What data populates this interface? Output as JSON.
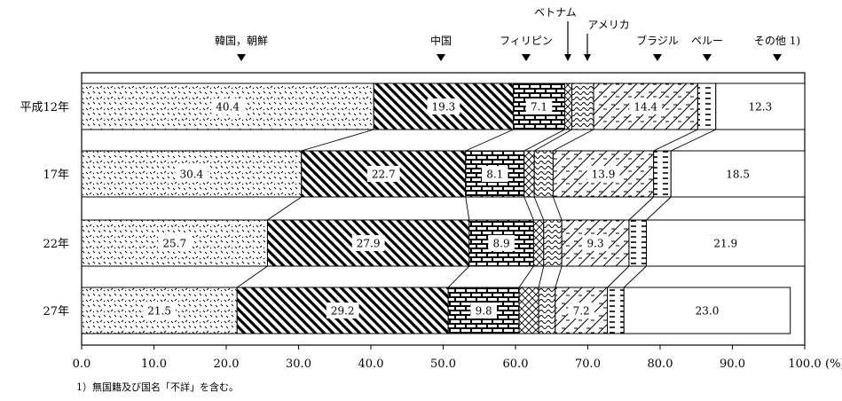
{
  "chart_data": {
    "type": "bar",
    "orientation": "horizontal",
    "stacked": true,
    "categories": [
      "平成12年",
      "17年",
      "22年",
      "27年"
    ],
    "series": [
      {
        "name": "韓国，朝鮮",
        "values": [
          40.4,
          30.4,
          25.7,
          21.5
        ],
        "pattern": "dots"
      },
      {
        "name": "中国",
        "values": [
          19.3,
          22.7,
          27.9,
          29.2
        ],
        "pattern": "diagonal-thick"
      },
      {
        "name": "フィリピン",
        "values": [
          7.1,
          8.1,
          8.9,
          9.8
        ],
        "pattern": "brick"
      },
      {
        "name": "ベトナム",
        "values": [
          1.0,
          1.4,
          1.4,
          2.7
        ],
        "pattern": "crosshatch"
      },
      {
        "name": "アメリカ",
        "values": [
          3.0,
          2.6,
          2.5,
          2.3
        ],
        "pattern": "wavy"
      },
      {
        "name": "ブラジル",
        "values": [
          14.4,
          13.9,
          9.3,
          7.2
        ],
        "pattern": "diagonal-light"
      },
      {
        "name": "ペルー",
        "values": [
          2.5,
          2.4,
          2.4,
          2.3
        ],
        "pattern": "dashes"
      },
      {
        "name": "その他 1)",
        "values": [
          12.3,
          18.5,
          21.9,
          23.0
        ],
        "pattern": "blank"
      }
    ],
    "labels": [
      [
        "40.4",
        "19.3",
        "7.1",
        "",
        "",
        "14.4",
        "",
        "12.3"
      ],
      [
        "30.4",
        "22.7",
        "8.1",
        "",
        "",
        "13.9",
        "",
        "18.5"
      ],
      [
        "25.7",
        "27.9",
        "8.9",
        "",
        "",
        "9.3",
        "",
        "21.9"
      ],
      [
        "21.5",
        "29.2",
        "9.8",
        "",
        "",
        "7.2",
        "",
        "23.0"
      ]
    ],
    "xlim": [
      0,
      100
    ],
    "xticks": [
      "0.0",
      "10.0",
      "20.0",
      "30.0",
      "40.0",
      "50.0",
      "60.0",
      "70.0",
      "80.0",
      "90.0",
      "100.0"
    ],
    "xunit": "(%)",
    "legend_position": "top",
    "connector_lines": true
  },
  "footnote": "1）無国籍及び国名「不詳」を含む。"
}
